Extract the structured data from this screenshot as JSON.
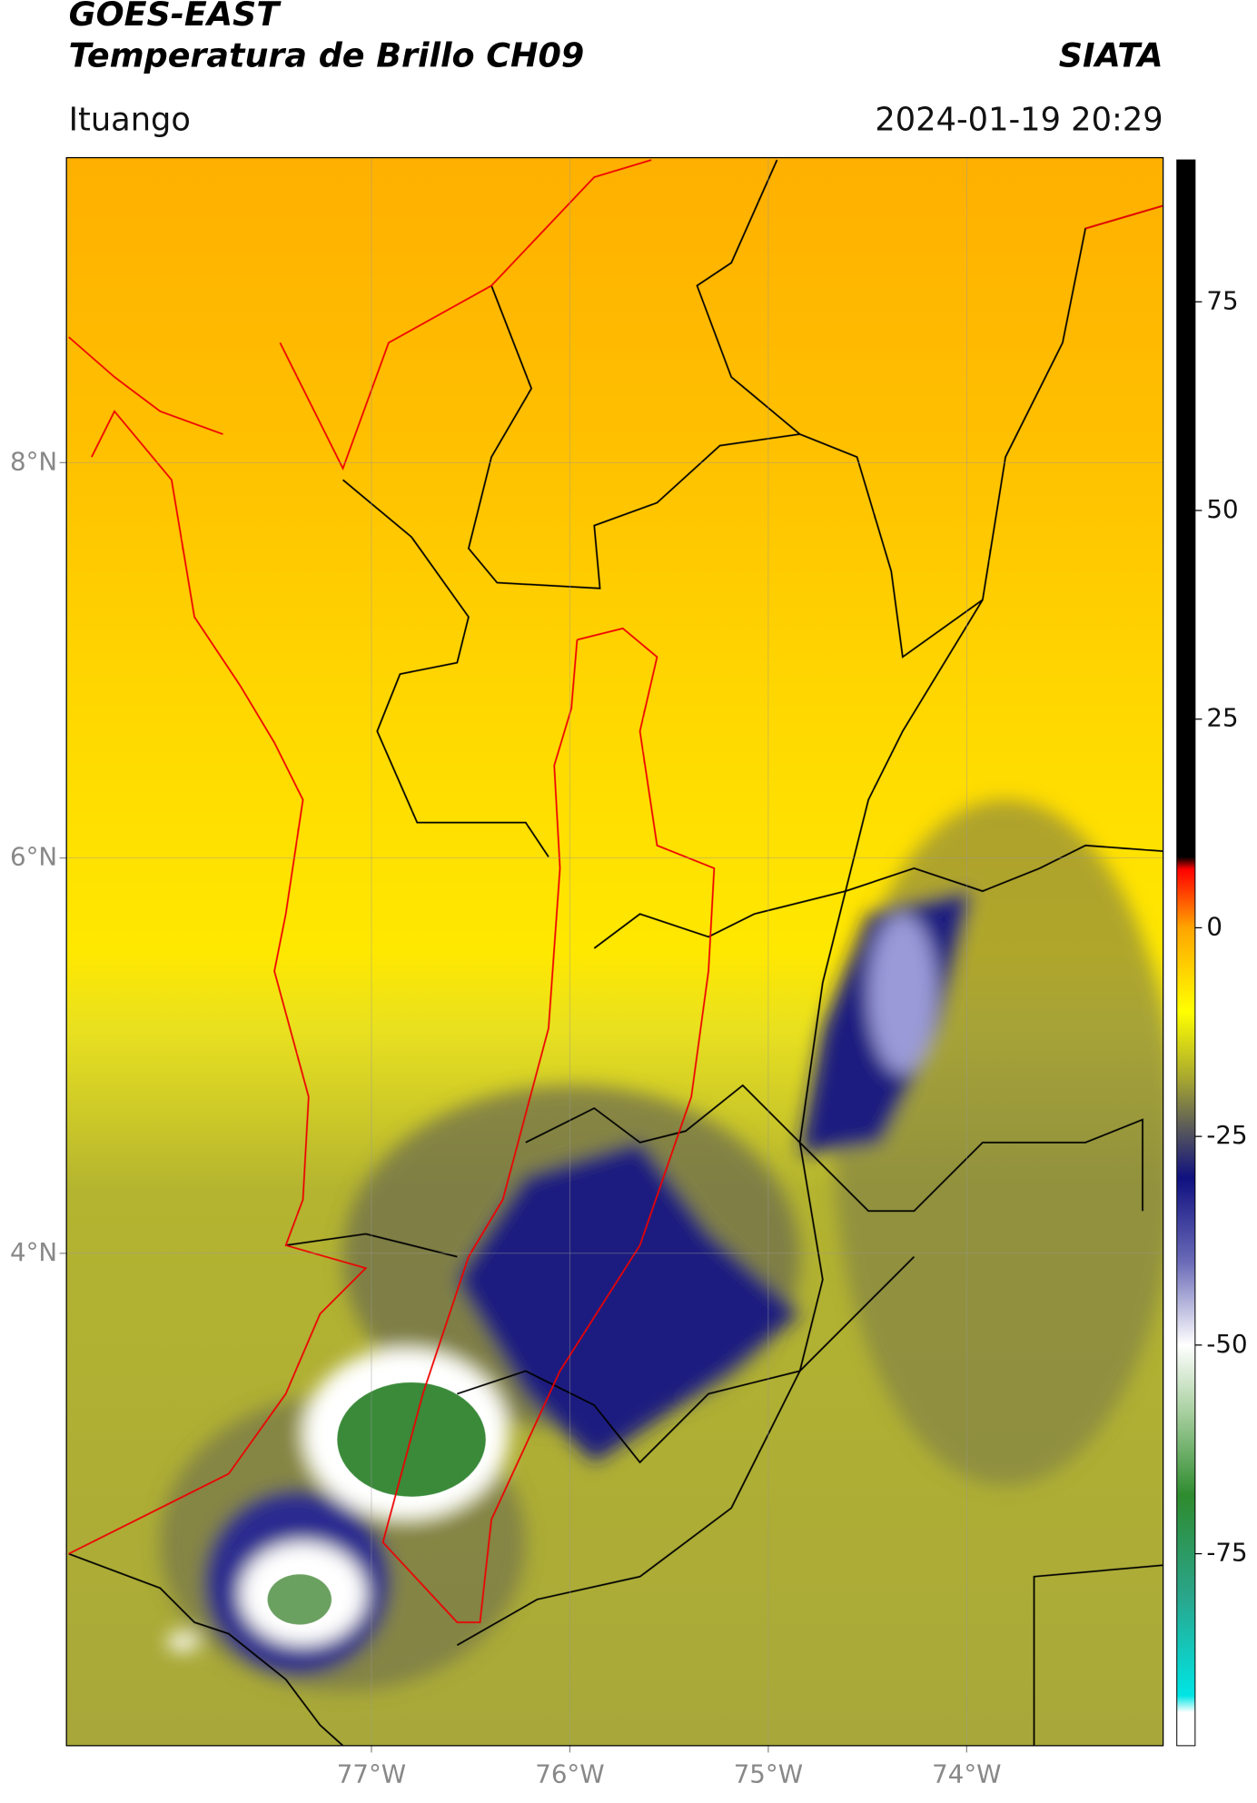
{
  "header": {
    "title": "GOES-EAST",
    "subtitle": "Temperatura de Brillo CH09",
    "source": "SIATA",
    "region": "Ituango",
    "datetime": "2024-01-19 20:29"
  },
  "map": {
    "xlim": [
      -78.537,
      -73.01
    ],
    "ylim": [
      1.509,
      9.543
    ],
    "xticks": [
      {
        "value": -77,
        "label": "77°W"
      },
      {
        "value": -76,
        "label": "76°W"
      },
      {
        "value": -75,
        "label": "75°W"
      },
      {
        "value": -74,
        "label": "74°W"
      }
    ],
    "yticks": [
      {
        "value": 8,
        "label": "8°N"
      },
      {
        "value": 6,
        "label": "6°N"
      },
      {
        "value": 4,
        "label": "4°N"
      }
    ],
    "grid": true
  },
  "colorbar": {
    "lim": [
      -98,
      92
    ],
    "ticks": [
      75,
      50,
      25,
      0,
      -25,
      -50,
      -75
    ],
    "colormap": [
      {
        "value": -98,
        "color": "#ffffff"
      },
      {
        "value": -94,
        "color": "#ffffff"
      },
      {
        "value": -92,
        "color": "#00e5e5"
      },
      {
        "value": -80,
        "color": "#2aa58a"
      },
      {
        "value": -68,
        "color": "#2e8b2e"
      },
      {
        "value": -58,
        "color": "#a8d0a0"
      },
      {
        "value": -50,
        "color": "#ffffff"
      },
      {
        "value": -40,
        "color": "#6a6ab8"
      },
      {
        "value": -30,
        "color": "#101080"
      },
      {
        "value": -24,
        "color": "#5a5a5a"
      },
      {
        "value": -18,
        "color": "#a8a830"
      },
      {
        "value": -10,
        "color": "#ffff00"
      },
      {
        "value": 0,
        "color": "#ffa500"
      },
      {
        "value": 7,
        "color": "#ff0000"
      },
      {
        "value": 8.5,
        "color": "#000000"
      },
      {
        "value": 92,
        "color": "#000000"
      }
    ]
  }
}
